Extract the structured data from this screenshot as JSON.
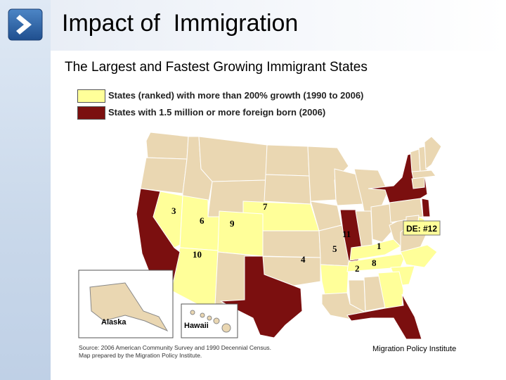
{
  "slide": {
    "title": "Impact of  Immigration",
    "subtitle": "The Largest and Fastest Growing Immigrant States",
    "nav_icon": "chevron-right-icon",
    "credit": "Migration Policy Institute"
  },
  "legend": [
    {
      "label": "States (ranked) with more than 200% growth (1990 to 2006)",
      "color": "#ffff99"
    },
    {
      "label": "States with 1.5 million or more foreign born (2006)",
      "color": "#7b0f0f"
    }
  ],
  "map": {
    "colors": {
      "growth": "#ffff99",
      "foreign_born": "#7b0f0f",
      "other": "#ead7b2",
      "border": "#ffffff"
    },
    "insets": {
      "alaska": "Alaska",
      "hawaii": "Hawaii"
    },
    "rank_labels": {
      "nevada": "3",
      "utah": "6",
      "colorado": "9",
      "nebraska": "7",
      "arizona": "10",
      "arkansas": "4",
      "tennessee": "5",
      "kentucky": "11",
      "georgia": "2",
      "south_carolina": "8",
      "north_carolina": "1"
    },
    "delaware_callout": "DE: #12",
    "source_line1": "Source: 2006 American Community Survey and 1990 Decennial Census.",
    "source_line2": "Map prepared by the Migration Policy Institute."
  }
}
